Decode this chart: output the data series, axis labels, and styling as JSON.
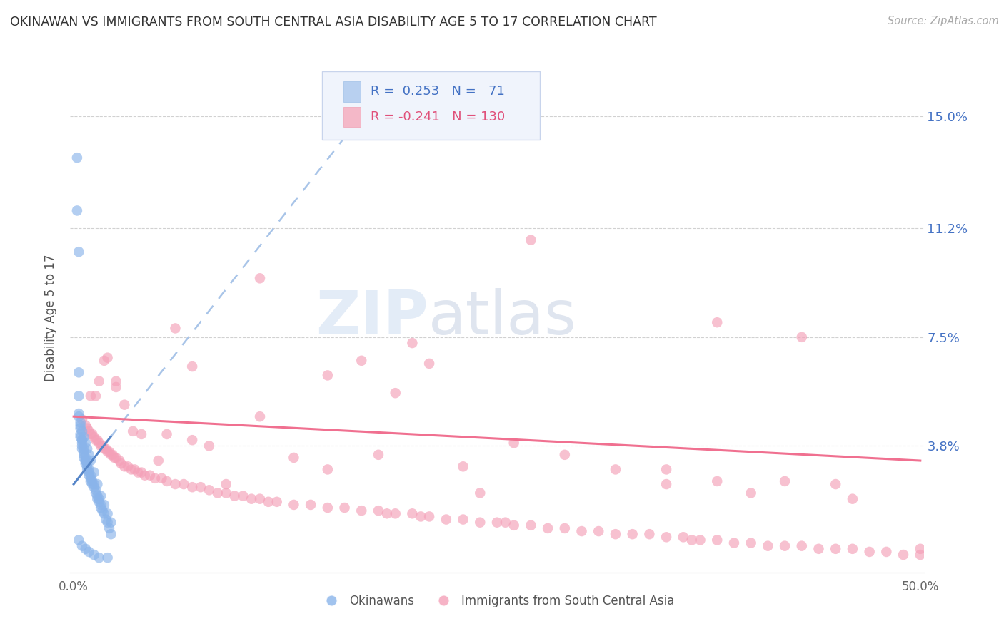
{
  "title": "OKINAWAN VS IMMIGRANTS FROM SOUTH CENTRAL ASIA DISABILITY AGE 5 TO 17 CORRELATION CHART",
  "source": "Source: ZipAtlas.com",
  "ylabel": "Disability Age 5 to 17",
  "xlim": [
    -0.002,
    0.502
  ],
  "ylim": [
    -0.005,
    0.168
  ],
  "xticks": [
    0.0,
    0.125,
    0.25,
    0.375,
    0.5
  ],
  "xticklabels": [
    "0.0%",
    "",
    "",
    "",
    "50.0%"
  ],
  "ytick_positions": [
    0.038,
    0.075,
    0.112,
    0.15
  ],
  "ytick_labels": [
    "3.8%",
    "7.5%",
    "11.2%",
    "15.0%"
  ],
  "okinawan_R": 0.253,
  "okinawan_N": 71,
  "immigrant_R": -0.241,
  "immigrant_N": 130,
  "scatter_blue_color": "#8ab4ea",
  "scatter_pink_color": "#f4a0b8",
  "line_blue_color": "#5585c8",
  "line_blue_dashed_color": "#a8c4e8",
  "line_pink_color": "#f07090",
  "background_color": "#ffffff",
  "grid_color": "#cccccc",
  "title_color": "#333333",
  "axis_label_color": "#555555",
  "right_tick_color": "#4472c4",
  "watermark_color": "#d8e4f4",
  "ok_x": [
    0.002,
    0.002,
    0.003,
    0.003,
    0.003,
    0.003,
    0.004,
    0.004,
    0.004,
    0.004,
    0.005,
    0.005,
    0.005,
    0.005,
    0.005,
    0.006,
    0.006,
    0.006,
    0.006,
    0.007,
    0.007,
    0.007,
    0.007,
    0.008,
    0.008,
    0.008,
    0.009,
    0.009,
    0.009,
    0.01,
    0.01,
    0.01,
    0.011,
    0.011,
    0.012,
    0.012,
    0.013,
    0.013,
    0.014,
    0.014,
    0.015,
    0.015,
    0.016,
    0.016,
    0.017,
    0.018,
    0.019,
    0.02,
    0.021,
    0.022,
    0.003,
    0.004,
    0.005,
    0.006,
    0.007,
    0.008,
    0.009,
    0.01,
    0.012,
    0.014,
    0.016,
    0.018,
    0.02,
    0.022,
    0.003,
    0.005,
    0.007,
    0.009,
    0.012,
    0.015,
    0.02
  ],
  "ok_y": [
    0.136,
    0.118,
    0.104,
    0.063,
    0.055,
    0.048,
    0.045,
    0.044,
    0.042,
    0.041,
    0.04,
    0.04,
    0.039,
    0.038,
    0.037,
    0.037,
    0.036,
    0.035,
    0.034,
    0.034,
    0.033,
    0.033,
    0.032,
    0.032,
    0.031,
    0.03,
    0.03,
    0.029,
    0.028,
    0.028,
    0.027,
    0.026,
    0.026,
    0.025,
    0.025,
    0.024,
    0.023,
    0.022,
    0.021,
    0.02,
    0.02,
    0.019,
    0.018,
    0.017,
    0.016,
    0.015,
    0.013,
    0.012,
    0.01,
    0.008,
    0.049,
    0.046,
    0.043,
    0.041,
    0.039,
    0.037,
    0.035,
    0.033,
    0.029,
    0.025,
    0.021,
    0.018,
    0.015,
    0.012,
    0.006,
    0.004,
    0.003,
    0.002,
    0.001,
    0.0,
    0.0
  ],
  "im_x": [
    0.005,
    0.007,
    0.008,
    0.009,
    0.01,
    0.011,
    0.012,
    0.013,
    0.014,
    0.015,
    0.016,
    0.017,
    0.018,
    0.019,
    0.02,
    0.021,
    0.022,
    0.023,
    0.024,
    0.025,
    0.027,
    0.028,
    0.03,
    0.032,
    0.034,
    0.036,
    0.038,
    0.04,
    0.042,
    0.045,
    0.048,
    0.052,
    0.055,
    0.06,
    0.065,
    0.07,
    0.075,
    0.08,
    0.085,
    0.09,
    0.095,
    0.1,
    0.105,
    0.11,
    0.115,
    0.12,
    0.13,
    0.14,
    0.15,
    0.16,
    0.17,
    0.18,
    0.185,
    0.19,
    0.2,
    0.205,
    0.21,
    0.22,
    0.23,
    0.24,
    0.25,
    0.255,
    0.26,
    0.27,
    0.28,
    0.29,
    0.3,
    0.31,
    0.32,
    0.33,
    0.34,
    0.35,
    0.36,
    0.365,
    0.37,
    0.38,
    0.39,
    0.4,
    0.41,
    0.42,
    0.43,
    0.44,
    0.45,
    0.46,
    0.47,
    0.48,
    0.49,
    0.5,
    0.013,
    0.018,
    0.025,
    0.035,
    0.05,
    0.07,
    0.09,
    0.11,
    0.13,
    0.15,
    0.17,
    0.19,
    0.21,
    0.23,
    0.26,
    0.29,
    0.32,
    0.35,
    0.38,
    0.42,
    0.46,
    0.5,
    0.27,
    0.38,
    0.43,
    0.11,
    0.2,
    0.15,
    0.07,
    0.03,
    0.01,
    0.015,
    0.02,
    0.06,
    0.08,
    0.18,
    0.24,
    0.35,
    0.4,
    0.45,
    0.025,
    0.04,
    0.055
  ],
  "im_y": [
    0.047,
    0.045,
    0.044,
    0.043,
    0.042,
    0.042,
    0.041,
    0.04,
    0.04,
    0.039,
    0.038,
    0.038,
    0.037,
    0.037,
    0.036,
    0.036,
    0.035,
    0.035,
    0.034,
    0.034,
    0.033,
    0.032,
    0.031,
    0.031,
    0.03,
    0.03,
    0.029,
    0.029,
    0.028,
    0.028,
    0.027,
    0.027,
    0.026,
    0.025,
    0.025,
    0.024,
    0.024,
    0.023,
    0.022,
    0.022,
    0.021,
    0.021,
    0.02,
    0.02,
    0.019,
    0.019,
    0.018,
    0.018,
    0.017,
    0.017,
    0.016,
    0.016,
    0.015,
    0.015,
    0.015,
    0.014,
    0.014,
    0.013,
    0.013,
    0.012,
    0.012,
    0.012,
    0.011,
    0.011,
    0.01,
    0.01,
    0.009,
    0.009,
    0.008,
    0.008,
    0.008,
    0.007,
    0.007,
    0.006,
    0.006,
    0.006,
    0.005,
    0.005,
    0.004,
    0.004,
    0.004,
    0.003,
    0.003,
    0.003,
    0.002,
    0.002,
    0.001,
    0.001,
    0.055,
    0.067,
    0.058,
    0.043,
    0.033,
    0.04,
    0.025,
    0.048,
    0.034,
    0.03,
    0.067,
    0.056,
    0.066,
    0.031,
    0.039,
    0.035,
    0.03,
    0.03,
    0.026,
    0.026,
    0.02,
    0.003,
    0.108,
    0.08,
    0.075,
    0.095,
    0.073,
    0.062,
    0.065,
    0.052,
    0.055,
    0.06,
    0.068,
    0.078,
    0.038,
    0.035,
    0.022,
    0.025,
    0.022,
    0.025,
    0.06,
    0.042,
    0.042
  ],
  "blue_line_x0": 0.0,
  "blue_line_y0": 0.025,
  "blue_line_x1": 0.19,
  "blue_line_y1": 0.165,
  "pink_line_x0": 0.0,
  "pink_line_y0": 0.048,
  "pink_line_x1": 0.5,
  "pink_line_y1": 0.033
}
